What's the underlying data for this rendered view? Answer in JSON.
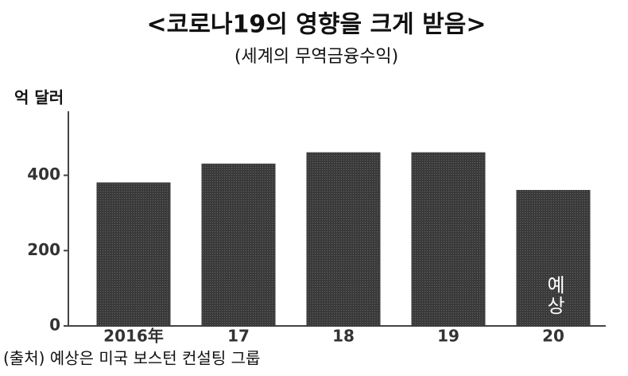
{
  "chart_data": {
    "type": "bar",
    "title": "<코로나19의 영향을 크게 받음>",
    "subtitle": "(세계의 무역금융수익)",
    "y_label": "억 달러",
    "categories": [
      "2016年",
      "17",
      "18",
      "19",
      "20"
    ],
    "values": [
      380,
      430,
      460,
      460,
      360
    ],
    "color": "#3a3a3a",
    "ylim": [
      0,
      570
    ],
    "yticks": [
      0,
      200,
      400
    ],
    "grid": false,
    "annotation": "예상",
    "source": "(출처) 예상은 미국 보스턴 컨설팅 그룹"
  }
}
